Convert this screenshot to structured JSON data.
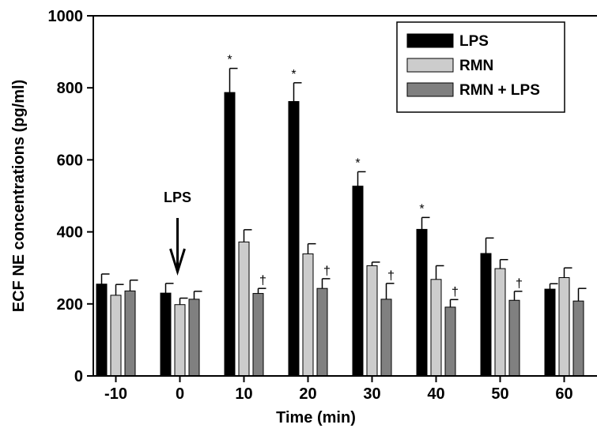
{
  "chart_data": {
    "type": "bar",
    "title": "",
    "xlabel": "Time (min)",
    "ylabel": "ECF NE concentrations (pg/ml)",
    "ylim": [
      0,
      1000
    ],
    "yticks": [
      "0",
      "200",
      "400",
      "600",
      "800",
      "1000"
    ],
    "categories": [
      "-10",
      "0",
      "10",
      "20",
      "30",
      "40",
      "50",
      "60"
    ],
    "series": [
      {
        "name": "LPS",
        "color": "#000000",
        "values": [
          255,
          230,
          787,
          762,
          527,
          407,
          340,
          241
        ],
        "errors": [
          28,
          27,
          67,
          52,
          40,
          33,
          43,
          15
        ],
        "markers": [
          "",
          "",
          "*",
          "*",
          "*",
          "*",
          "",
          ""
        ]
      },
      {
        "name": "RMN",
        "color": "#cccccc",
        "values": [
          224,
          198,
          372,
          339,
          306,
          268,
          298,
          273
        ],
        "errors": [
          30,
          18,
          34,
          28,
          10,
          38,
          25,
          27
        ],
        "markers": [
          "",
          "",
          "",
          "",
          "",
          "",
          "",
          ""
        ]
      },
      {
        "name": "RMN + LPS",
        "color": "#808080",
        "values": [
          236,
          213,
          229,
          243,
          213,
          191,
          210,
          208
        ],
        "errors": [
          30,
          22,
          14,
          27,
          44,
          21,
          25,
          35
        ],
        "markers": [
          "",
          "",
          "†",
          "†",
          "†",
          "†",
          "†",
          ""
        ]
      }
    ],
    "annotation": {
      "text": "LPS",
      "category": "0"
    },
    "legend_position": "top-right",
    "grid": false
  }
}
